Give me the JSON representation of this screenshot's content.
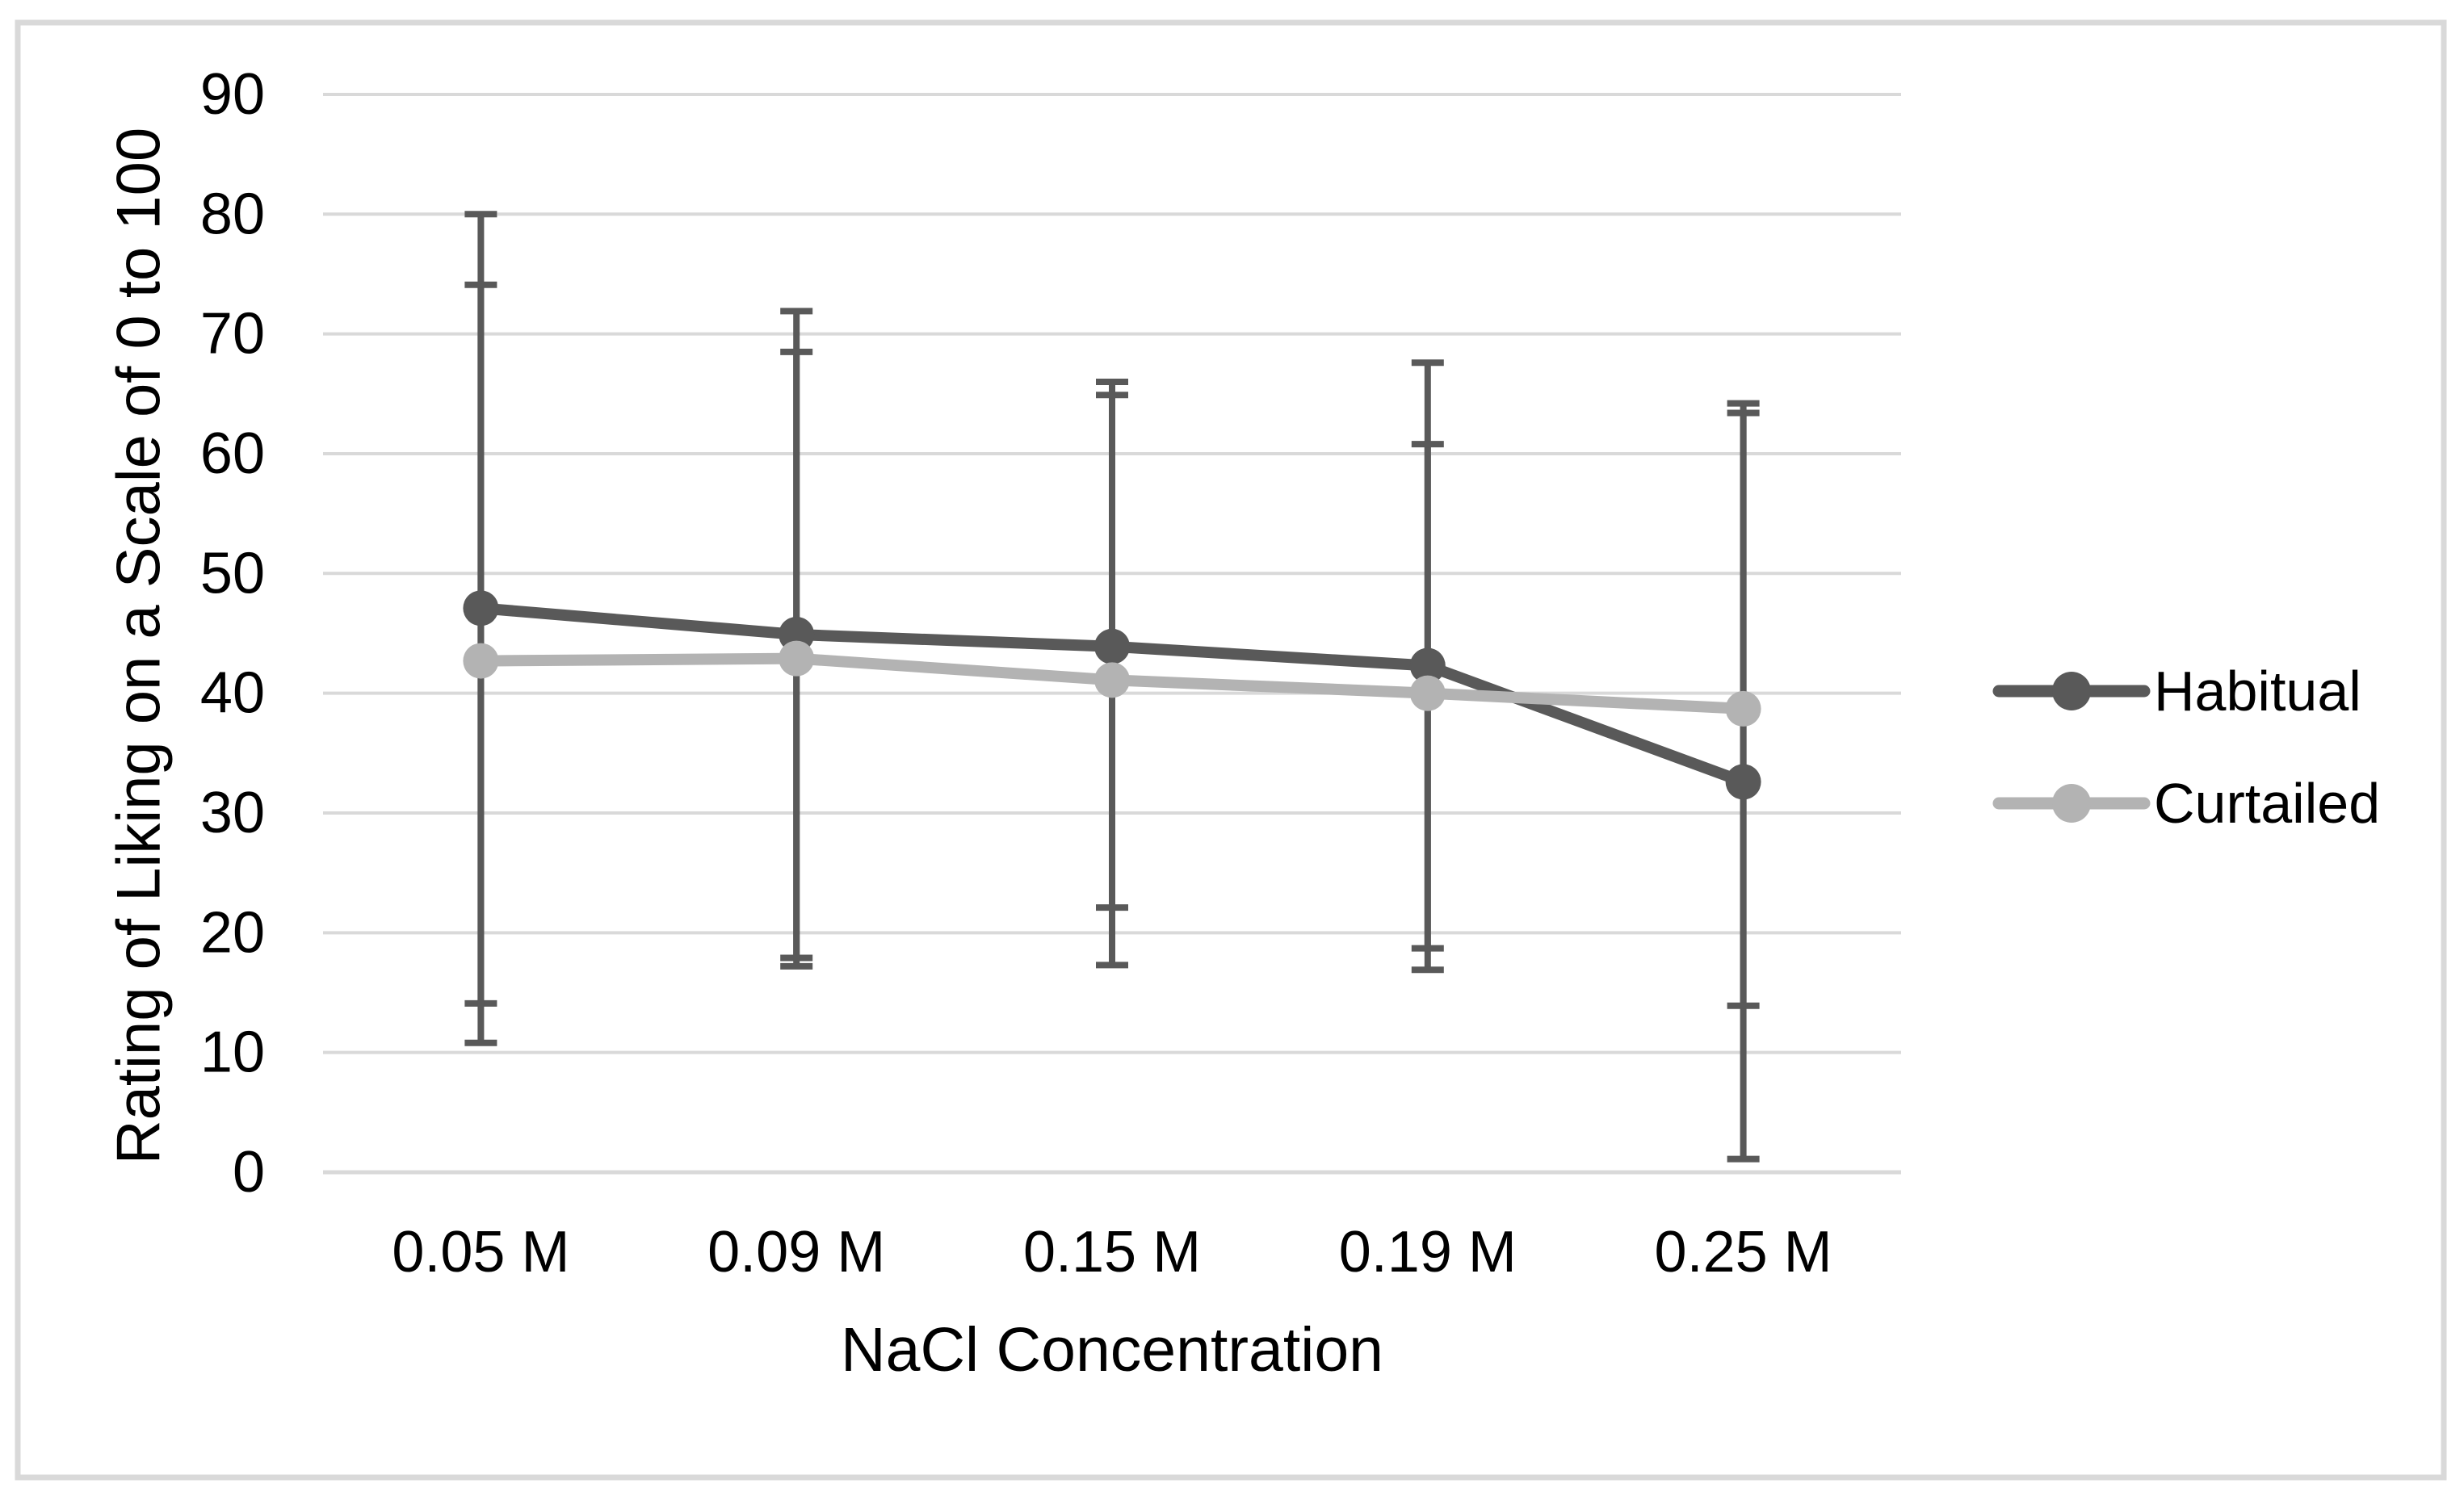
{
  "figure": {
    "background": "#ffffff",
    "border_color": "#d9d9d9",
    "text_color": "#000000"
  },
  "chart_data": {
    "type": "line",
    "title": "",
    "categories": [
      "0.05 M",
      "0.09 M",
      "0.15 M",
      "0.19 M",
      "0.25 M"
    ],
    "xlabel": "NaCl Concentration",
    "ylabel": "Rating of Liking on a Scale of 0 to 100",
    "ylim": [
      0,
      90
    ],
    "ytick_step": 10,
    "yticks": [
      0,
      10,
      20,
      30,
      40,
      50,
      60,
      70,
      80,
      90
    ],
    "grid": "horizontal",
    "gridline_color": "#d9d9d9",
    "legend_position": "right",
    "error_bar_color": "#595959",
    "series": [
      {
        "name": "Habitual",
        "color": "#595959",
        "marker": "circle",
        "values": [
          47.1,
          44.9,
          43.9,
          42.3,
          32.6
        ],
        "error_upper": [
          80.0,
          71.9,
          66.0,
          67.6,
          64.2
        ],
        "error_lower": [
          14.1,
          17.9,
          22.1,
          16.9,
          1.1
        ]
      },
      {
        "name": "Curtailed",
        "color": "#b3b3b3",
        "marker": "circle",
        "values": [
          42.7,
          42.9,
          41.1,
          40.0,
          38.7
        ],
        "error_upper": [
          74.1,
          68.5,
          64.9,
          60.8,
          63.4
        ],
        "error_lower": [
          10.8,
          17.2,
          17.3,
          18.7,
          13.9
        ]
      }
    ]
  }
}
